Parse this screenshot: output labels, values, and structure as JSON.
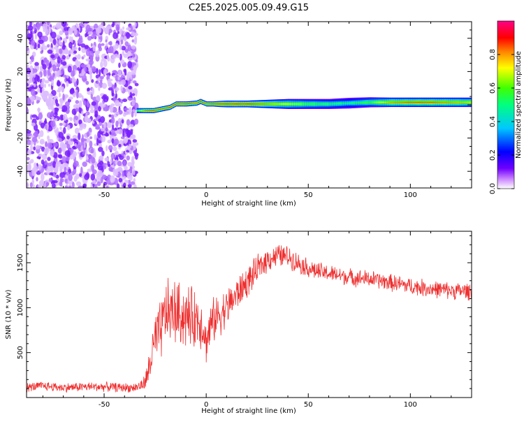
{
  "title": "C2E5.2025.005.09.49.G15",
  "chart_data": [
    {
      "type": "heatmap",
      "xlabel": "Height of straight line (km)",
      "ylabel": "Frequency (Hz)",
      "xlim": [
        -88,
        130
      ],
      "ylim": [
        -50,
        50
      ],
      "xticks": [
        -50,
        0,
        50,
        100
      ],
      "yticks": [
        -40,
        -20,
        0,
        20,
        40
      ],
      "colorbar": {
        "label": "Normalized spectral amplitude",
        "range": [
          0.0,
          1.0
        ],
        "ticks": [
          0.0,
          0.2,
          0.4,
          0.6,
          0.8
        ],
        "tick_labels": [
          "0.0",
          "0.2",
          "0.4",
          "0.6",
          "0.8"
        ],
        "colormap": [
          "#ffffff",
          "#c880ff",
          "#7000ff",
          "#0000ff",
          "#00c8ff",
          "#00ff80",
          "#40ff00",
          "#ffff00",
          "#ff8000",
          "#ff0000",
          "#ff0088"
        ]
      },
      "noise_region": {
        "x_range": [
          -88,
          -34
        ],
        "description_values": "scattered low-amplitude purple speckle across all frequencies"
      },
      "ridge": {
        "x": [
          -34,
          -30,
          -26,
          -22,
          -18,
          -15,
          -10,
          -5,
          -3,
          0,
          3,
          6,
          10,
          15,
          20,
          30,
          40,
          50,
          60,
          70,
          80,
          90,
          100,
          110,
          120,
          130
        ],
        "freq": [
          -3.5,
          -3.5,
          -3.5,
          -2.5,
          -1.5,
          0.5,
          0.5,
          1.0,
          2.0,
          0.5,
          0.5,
          0.5,
          0.5,
          0.5,
          0.5,
          0.5,
          0.5,
          0.5,
          0.5,
          1.0,
          1.5,
          1.5,
          1.5,
          1.5,
          1.5,
          1.5
        ],
        "amplitude": [
          0.6,
          0.85,
          0.9,
          0.85,
          0.9,
          0.95,
          0.9,
          0.85,
          0.9,
          0.85,
          0.9,
          0.95,
          0.9,
          0.95,
          0.9,
          0.8,
          0.7,
          0.6,
          0.55,
          0.5,
          0.6,
          0.8,
          0.85,
          0.85,
          0.8,
          0.75
        ],
        "halfwidth": [
          1.5,
          1.5,
          1.5,
          1.5,
          1.5,
          1.5,
          1.5,
          1.5,
          1.5,
          1.5,
          1.5,
          1.8,
          2.0,
          2.0,
          2.0,
          2.5,
          3.0,
          3.0,
          3.0,
          3.2,
          3.0,
          2.8,
          2.8,
          2.8,
          2.8,
          2.8
        ]
      }
    },
    {
      "type": "line",
      "xlabel": "Height of straight line (km)",
      "ylabel": "SNR (10 * v/v)",
      "xlim": [
        -88,
        130
      ],
      "ylim": [
        0,
        1850
      ],
      "xticks": [
        -50,
        0,
        50,
        100
      ],
      "yticks": [
        500,
        1000,
        1500
      ],
      "color": "#ee2e2e",
      "series": [
        {
          "x": [
            -88,
            -80,
            -70,
            -60,
            -50,
            -40,
            -35,
            -31,
            -29,
            -27,
            -25,
            -22,
            -20,
            -15,
            -10,
            -5,
            -2,
            0,
            2,
            5,
            10,
            15,
            20,
            25,
            30,
            35,
            40,
            45,
            50,
            55,
            60,
            70,
            80,
            90,
            100,
            110,
            120,
            130
          ],
          "y": [
            110,
            130,
            110,
            120,
            120,
            110,
            110,
            140,
            220,
            450,
            620,
            750,
            950,
            950,
            900,
            880,
            850,
            600,
            800,
            900,
            1000,
            1150,
            1280,
            1420,
            1540,
            1580,
            1570,
            1500,
            1440,
            1400,
            1380,
            1340,
            1320,
            1280,
            1240,
            1210,
            1190,
            1180
          ],
          "spread": [
            60,
            60,
            60,
            60,
            60,
            60,
            60,
            80,
            150,
            300,
            350,
            400,
            420,
            420,
            400,
            380,
            350,
            250,
            300,
            280,
            250,
            220,
            200,
            180,
            160,
            150,
            140,
            130,
            120,
            120,
            110,
            110,
            110,
            110,
            110,
            110,
            110,
            110
          ]
        }
      ]
    }
  ]
}
